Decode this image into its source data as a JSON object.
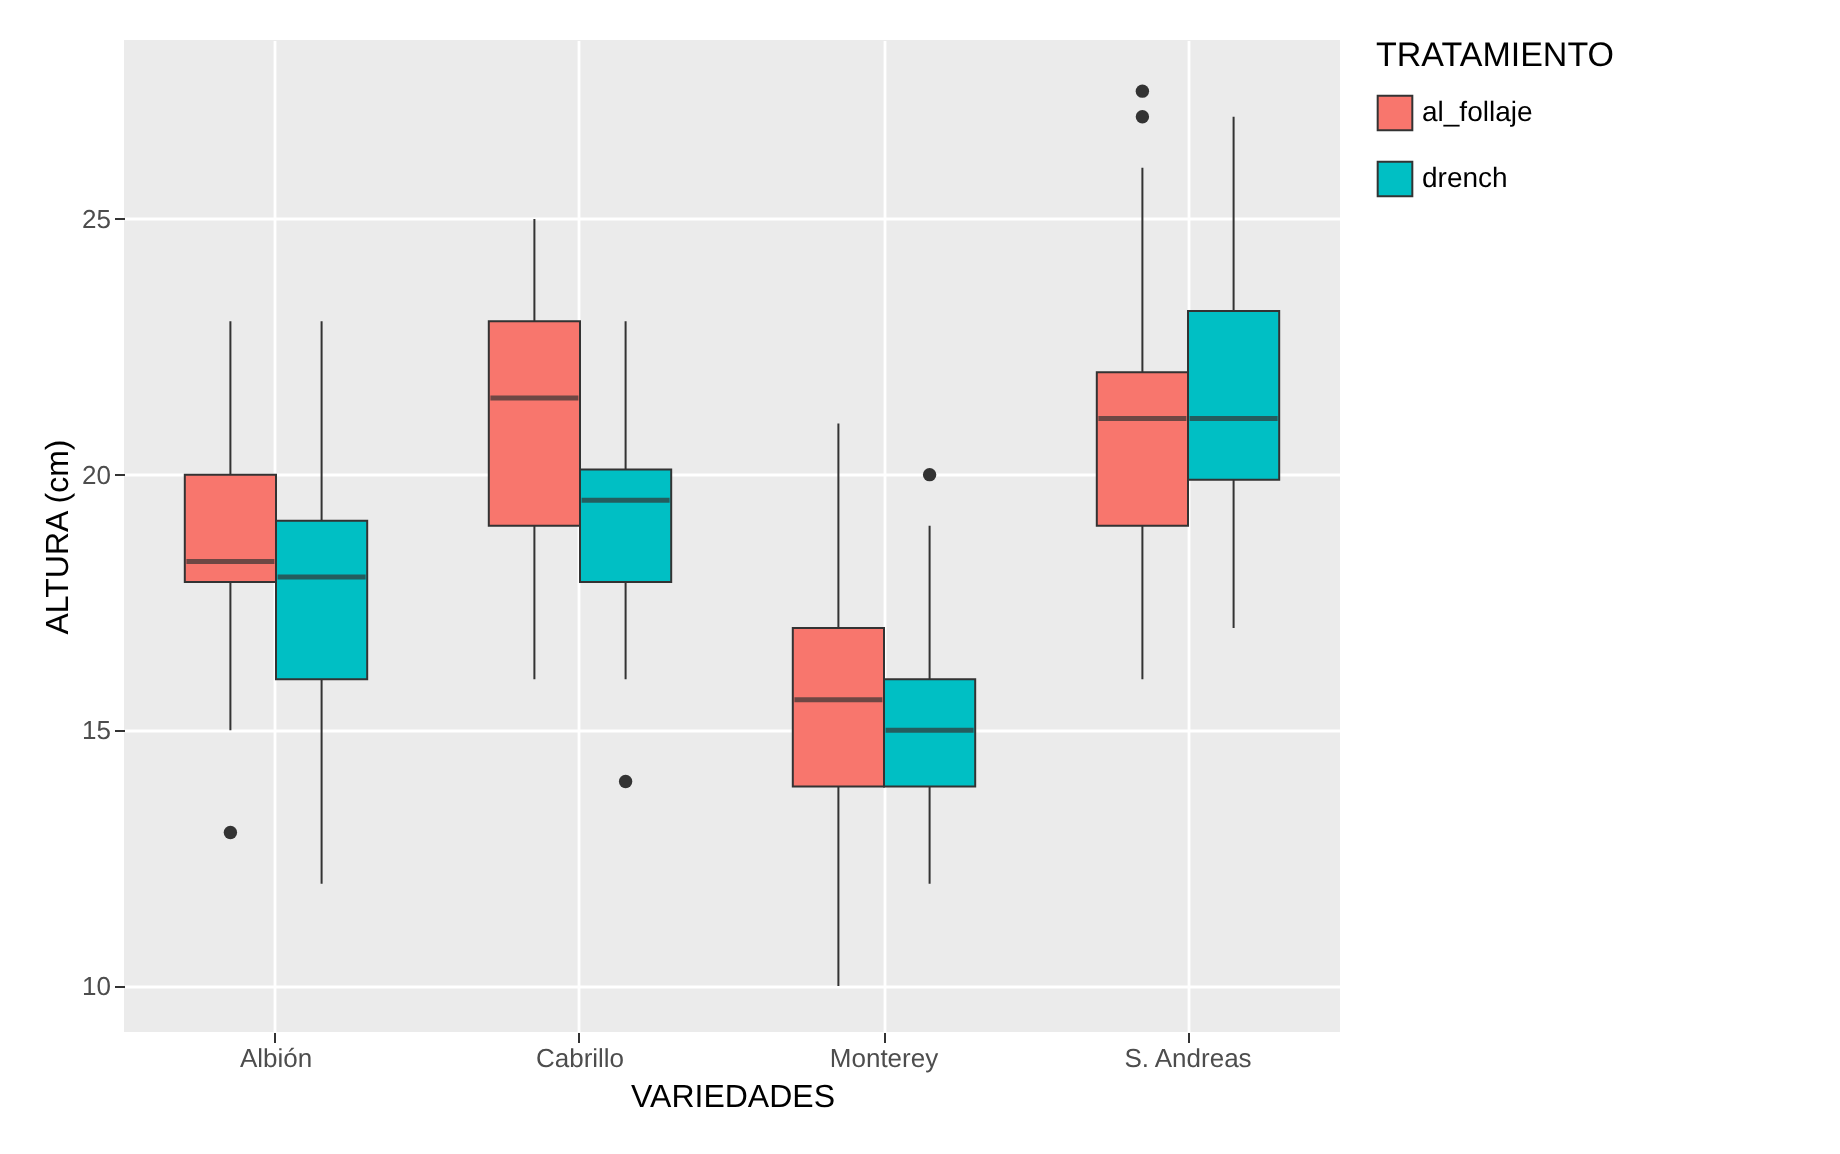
{
  "chart_data": {
    "type": "box",
    "xlabel": "VARIEDADES",
    "ylabel": "ALTURA (cm)",
    "legend_title": "TRATAMIENTO",
    "legend": "right",
    "grid": true,
    "categories": [
      "Albión",
      "Cabrillo",
      "Monterey",
      "S. Andreas"
    ],
    "ylim": [
      9.1,
      28.5
    ],
    "yticks": [
      10,
      15,
      20,
      25
    ],
    "series": [
      {
        "name": "al_follaje",
        "color": "#f8766d",
        "boxes": [
          {
            "low": 15,
            "q1": 17.9,
            "median": 18.3,
            "q3": 20,
            "high": 23,
            "outliers": [
              13
            ]
          },
          {
            "low": 16,
            "q1": 19,
            "median": 21.5,
            "q3": 23,
            "high": 25
          },
          {
            "low": 10,
            "q1": 13.9,
            "median": 15.6,
            "q3": 17,
            "high": 21
          },
          {
            "low": 16,
            "q1": 19,
            "median": 21.1,
            "q3": 22,
            "high": 26,
            "outliers": [
              27,
              27.5
            ]
          }
        ]
      },
      {
        "name": "drench",
        "color": "#00bfc4",
        "boxes": [
          {
            "low": 12,
            "q1": 16,
            "median": 18,
            "q3": 19.1,
            "high": 23
          },
          {
            "low": 16,
            "q1": 17.9,
            "median": 19.5,
            "q3": 20.1,
            "high": 23,
            "outliers": [
              14
            ]
          },
          {
            "low": 12,
            "q1": 13.9,
            "median": 15,
            "q3": 16,
            "high": 19,
            "outliers": [
              20
            ]
          },
          {
            "low": 17,
            "q1": 19.9,
            "median": 21.1,
            "q3": 23.2,
            "high": 27
          }
        ]
      }
    ]
  }
}
